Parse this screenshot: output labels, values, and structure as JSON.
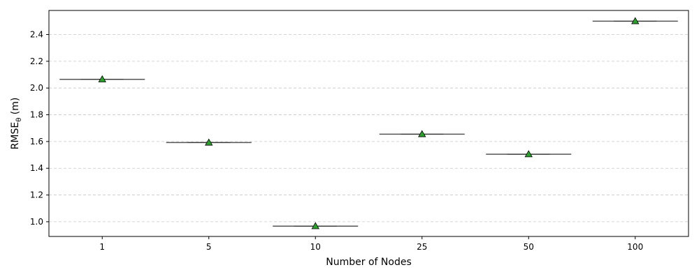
{
  "chart_data": {
    "type": "box",
    "title": "",
    "xlabel": "Number of Nodes",
    "ylabel_main": "RMSE",
    "ylabel_sub": "θ",
    "ylabel_unit": " (m)",
    "categories": [
      "1",
      "5",
      "10",
      "25",
      "50",
      "100"
    ],
    "values": [
      2.065,
      1.592,
      0.967,
      1.655,
      1.505,
      2.5
    ],
    "ylim": [
      0.89,
      2.58
    ],
    "yticks": [
      "1.0",
      "1.2",
      "1.4",
      "1.6",
      "1.8",
      "2.0",
      "2.2",
      "2.4"
    ],
    "ytick_values": [
      1.0,
      1.2,
      1.4,
      1.6,
      1.8,
      2.0,
      2.2,
      2.4
    ],
    "grid": "y-dashed",
    "colors": {
      "median_line": "#555555",
      "mean_marker_fill": "#2ca02c",
      "mean_marker_edge": "#000000",
      "grid": "#c8c8c8"
    }
  }
}
